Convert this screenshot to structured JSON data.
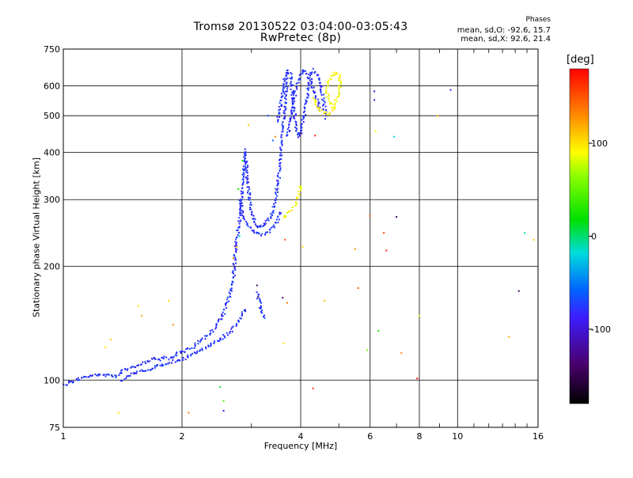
{
  "header": {
    "title_line1": "Tromsø 20130522 03:04:00-03:05:43",
    "title_line2": "RwPretec (8p)",
    "phases_label": "Phases",
    "phases_o": "mean, sd,O: -92.6, 15.7",
    "phases_x": "mean, sd,X: 92.6, 21.4"
  },
  "colors": {
    "axis": "#000000",
    "grid": "#000000",
    "background": "#ffffff",
    "dominant_trace": "#1e3cff"
  },
  "chart_data": {
    "type": "scatter",
    "title": "Tromsø 20130522 03:04:00-03:05:43",
    "subtitle": "RwPretec (8p)",
    "xlabel": "Frequency [MHz]",
    "ylabel": "Stationary phase Virtual Height [km]",
    "x_scale": "log",
    "y_scale": "log",
    "xlim": [
      1,
      16
    ],
    "ylim": [
      75,
      750
    ],
    "x_ticks": [
      1,
      2,
      4,
      6,
      8,
      10,
      16
    ],
    "x_tick_labels": [
      "1",
      "2",
      "4",
      "6",
      "8",
      "10",
      "16"
    ],
    "y_ticks": [
      75,
      100,
      200,
      300,
      400,
      500,
      600,
      750
    ],
    "y_tick_labels": [
      "75",
      "100",
      "200",
      "300",
      "400",
      "500",
      "600",
      "750"
    ],
    "grid": true,
    "colorbar": {
      "label": "[deg]",
      "range": [
        -180,
        180
      ],
      "ticks": [
        -100,
        0,
        100
      ],
      "tick_labels": [
        "-100",
        "0",
        "100"
      ],
      "colormap": "rainbow (black-purple-blue-cyan-green-yellow-orange-red)"
    },
    "series": [
      {
        "name": "O",
        "phase_deg": -92.6,
        "segments": [
          [
            [
              1.0,
              97
            ],
            [
              1.05,
              99
            ],
            [
              1.1,
              101
            ],
            [
              1.15,
              102
            ],
            [
              1.2,
              103
            ],
            [
              1.3,
              103
            ],
            [
              1.35,
              102
            ],
            [
              1.4,
              105
            ],
            [
              1.45,
              107
            ],
            [
              1.5,
              108
            ],
            [
              1.55,
              110
            ],
            [
              1.6,
              111
            ],
            [
              1.65,
              112
            ],
            [
              1.7,
              114
            ],
            [
              1.75,
              113
            ],
            [
              1.8,
              115
            ],
            [
              1.85,
              114
            ],
            [
              1.9,
              116
            ],
            [
              1.95,
              118
            ],
            [
              2.0,
              118
            ],
            [
              2.05,
              120
            ],
            [
              2.1,
              121
            ],
            [
              2.15,
              123
            ],
            [
              2.2,
              126
            ],
            [
              2.25,
              128
            ],
            [
              2.3,
              130
            ],
            [
              2.35,
              133
            ],
            [
              2.4,
              136
            ],
            [
              2.45,
              140
            ],
            [
              2.5,
              145
            ],
            [
              2.55,
              150
            ],
            [
              2.6,
              158
            ],
            [
              2.65,
              170
            ],
            [
              2.7,
              185
            ],
            [
              2.72,
              205
            ],
            [
              2.74,
              225
            ],
            [
              2.78,
              250
            ],
            [
              2.82,
              280
            ],
            [
              2.85,
              320
            ],
            [
              2.88,
              370
            ],
            [
              2.9,
              405
            ],
            [
              2.93,
              340
            ],
            [
              2.97,
              300
            ],
            [
              3.0,
              275
            ],
            [
              3.05,
              262
            ],
            [
              3.1,
              255
            ],
            [
              3.15,
              254
            ],
            [
              3.2,
              255
            ],
            [
              3.25,
              258
            ],
            [
              3.3,
              263
            ],
            [
              3.35,
              270
            ],
            [
              3.4,
              280
            ],
            [
              3.45,
              300
            ],
            [
              3.5,
              330
            ],
            [
              3.55,
              370
            ],
            [
              3.58,
              420
            ],
            [
              3.62,
              480
            ],
            [
              3.65,
              540
            ],
            [
              3.68,
              600
            ],
            [
              3.7,
              640
            ],
            [
              3.72,
              660
            ]
          ],
          [
            [
              1.4,
              100
            ],
            [
              1.5,
              104
            ],
            [
              1.6,
              106
            ],
            [
              1.7,
              108
            ],
            [
              1.8,
              110
            ],
            [
              1.9,
              112
            ],
            [
              2.0,
              113
            ],
            [
              2.1,
              116
            ],
            [
              2.2,
              119
            ],
            [
              2.3,
              122
            ],
            [
              2.4,
              125
            ],
            [
              2.5,
              128
            ],
            [
              2.6,
              132
            ],
            [
              2.7,
              137
            ],
            [
              2.8,
              145
            ],
            [
              2.9,
              155
            ]
          ],
          [
            [
              2.8,
              300
            ],
            [
              2.85,
              275
            ],
            [
              2.9,
              262
            ],
            [
              3.0,
              250
            ],
            [
              3.1,
              244
            ],
            [
              3.2,
              243
            ],
            [
              3.3,
              246
            ],
            [
              3.4,
              253
            ],
            [
              3.5,
              265
            ],
            [
              3.55,
              280
            ]
          ],
          [
            [
              3.5,
              480
            ],
            [
              3.55,
              520
            ],
            [
              3.6,
              580
            ],
            [
              3.65,
              630
            ],
            [
              3.72,
              655
            ],
            [
              3.78,
              640
            ],
            [
              3.8,
              600
            ],
            [
              3.82,
              560
            ],
            [
              3.85,
              520
            ],
            [
              3.88,
              480
            ],
            [
              3.92,
              450
            ],
            [
              3.95,
              440
            ],
            [
              4.0,
              450
            ],
            [
              4.05,
              480
            ],
            [
              4.1,
              520
            ],
            [
              4.15,
              560
            ],
            [
              4.2,
              600
            ],
            [
              4.25,
              640
            ],
            [
              4.3,
              660
            ],
            [
              4.4,
              640
            ],
            [
              4.5,
              600
            ],
            [
              4.55,
              560
            ],
            [
              4.6,
              520
            ],
            [
              4.65,
              490
            ]
          ],
          [
            [
              3.7,
              440
            ],
            [
              3.75,
              470
            ],
            [
              3.8,
              520
            ],
            [
              3.85,
              560
            ],
            [
              3.9,
              600
            ],
            [
              4.0,
              640
            ],
            [
              4.1,
              660
            ],
            [
              4.2,
              630
            ],
            [
              4.3,
              590
            ],
            [
              4.4,
              550
            ],
            [
              4.5,
              510
            ]
          ],
          [
            [
              3.1,
              170
            ],
            [
              3.15,
              160
            ],
            [
              3.2,
              150
            ],
            [
              3.25,
              145
            ]
          ]
        ]
      },
      {
        "name": "X",
        "phase_deg": 92.6,
        "segments": [
          [
            [
              3.6,
              270
            ],
            [
              3.7,
              275
            ],
            [
              3.8,
              282
            ],
            [
              3.9,
              292
            ],
            [
              3.95,
              305
            ],
            [
              4.0,
              330
            ]
          ],
          [
            [
              4.3,
              560
            ],
            [
              4.4,
              530
            ],
            [
              4.5,
              515
            ],
            [
              4.6,
              508
            ],
            [
              4.7,
              505
            ],
            [
              4.8,
              515
            ],
            [
              4.9,
              535
            ],
            [
              4.95,
              560
            ],
            [
              5.0,
              585
            ],
            [
              5.05,
              610
            ],
            [
              5.0,
              640
            ],
            [
              4.9,
              650
            ],
            [
              4.8,
              640
            ],
            [
              4.7,
              610
            ],
            [
              4.65,
              580
            ],
            [
              4.7,
              550
            ],
            [
              4.8,
              530
            ],
            [
              4.9,
              520
            ]
          ]
        ]
      }
    ],
    "scatter_points": [
      {
        "x": 1.28,
        "y": 122,
        "phase": 100
      },
      {
        "x": 1.32,
        "y": 128,
        "phase": 110
      },
      {
        "x": 1.55,
        "y": 157,
        "phase": 100
      },
      {
        "x": 1.58,
        "y": 148,
        "phase": 120
      },
      {
        "x": 1.85,
        "y": 162,
        "phase": 105
      },
      {
        "x": 1.9,
        "y": 140,
        "phase": 130
      },
      {
        "x": 1.38,
        "y": 82,
        "phase": 100
      },
      {
        "x": 2.08,
        "y": 82,
        "phase": 140
      },
      {
        "x": 2.55,
        "y": 83,
        "phase": -100
      },
      {
        "x": 2.5,
        "y": 96,
        "phase": 10
      },
      {
        "x": 2.55,
        "y": 88,
        "phase": 40
      },
      {
        "x": 2.7,
        "y": 210,
        "phase": 140
      },
      {
        "x": 2.75,
        "y": 225,
        "phase": 120
      },
      {
        "x": 2.8,
        "y": 240,
        "phase": -20
      },
      {
        "x": 2.78,
        "y": 320,
        "phase": 30
      },
      {
        "x": 2.85,
        "y": 380,
        "phase": 20
      },
      {
        "x": 2.95,
        "y": 472,
        "phase": 110
      },
      {
        "x": 3.1,
        "y": 178,
        "phase": -150
      },
      {
        "x": 3.12,
        "y": 166,
        "phase": -140
      },
      {
        "x": 3.3,
        "y": 500,
        "phase": -80
      },
      {
        "x": 3.4,
        "y": 430,
        "phase": -70
      },
      {
        "x": 3.45,
        "y": 440,
        "phase": 130
      },
      {
        "x": 3.6,
        "y": 165,
        "phase": -150
      },
      {
        "x": 3.62,
        "y": 125,
        "phase": 100
      },
      {
        "x": 3.65,
        "y": 235,
        "phase": 150
      },
      {
        "x": 3.7,
        "y": 160,
        "phase": 140
      },
      {
        "x": 4.05,
        "y": 225,
        "phase": 100
      },
      {
        "x": 4.3,
        "y": 95,
        "phase": 160
      },
      {
        "x": 4.35,
        "y": 443,
        "phase": 170
      },
      {
        "x": 4.6,
        "y": 162,
        "phase": 110
      },
      {
        "x": 5.0,
        "y": 600,
        "phase": 100
      },
      {
        "x": 5.5,
        "y": 222,
        "phase": 130
      },
      {
        "x": 5.6,
        "y": 175,
        "phase": 150
      },
      {
        "x": 5.9,
        "y": 120,
        "phase": 60
      },
      {
        "x": 6.0,
        "y": 272,
        "phase": 150
      },
      {
        "x": 6.15,
        "y": 580,
        "phase": -110
      },
      {
        "x": 6.15,
        "y": 550,
        "phase": -100
      },
      {
        "x": 6.2,
        "y": 455,
        "phase": 90
      },
      {
        "x": 6.3,
        "y": 135,
        "phase": 30
      },
      {
        "x": 6.5,
        "y": 245,
        "phase": 160
      },
      {
        "x": 6.6,
        "y": 220,
        "phase": 170
      },
      {
        "x": 6.9,
        "y": 440,
        "phase": -20
      },
      {
        "x": 7.0,
        "y": 270,
        "phase": -150
      },
      {
        "x": 7.2,
        "y": 118,
        "phase": 130
      },
      {
        "x": 7.9,
        "y": 101,
        "phase": 175
      },
      {
        "x": 8.0,
        "y": 148,
        "phase": 90
      },
      {
        "x": 8.9,
        "y": 500,
        "phase": 110
      },
      {
        "x": 9.6,
        "y": 585,
        "phase": -100
      },
      {
        "x": 13.5,
        "y": 130,
        "phase": 120
      },
      {
        "x": 14.3,
        "y": 172,
        "phase": -150
      },
      {
        "x": 14.8,
        "y": 245,
        "phase": -10
      },
      {
        "x": 15.6,
        "y": 235,
        "phase": 110
      }
    ]
  }
}
